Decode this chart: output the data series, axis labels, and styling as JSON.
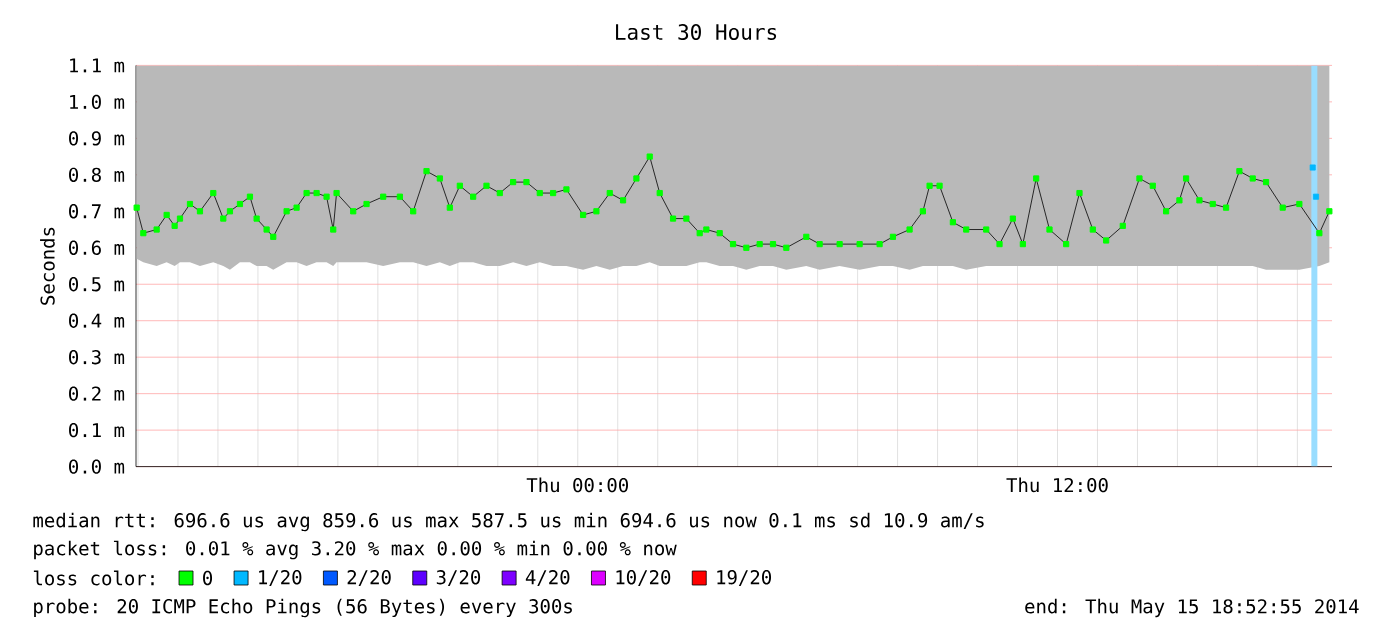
{
  "chart_data": {
    "type": "line",
    "title": "Last 30 Hours",
    "ylabel": "Seconds",
    "x": [
      "2014-05-14T12:58",
      "2014-05-14T13:08",
      "2014-05-14T13:28",
      "2014-05-14T13:43",
      "2014-05-14T13:55",
      "2014-05-14T14:03",
      "2014-05-14T14:18",
      "2014-05-14T14:33",
      "2014-05-14T14:53",
      "2014-05-14T15:08",
      "2014-05-14T15:18",
      "2014-05-14T15:33",
      "2014-05-14T15:48",
      "2014-05-14T15:58",
      "2014-05-14T16:13",
      "2014-05-14T16:23",
      "2014-05-14T16:43",
      "2014-05-14T16:58",
      "2014-05-14T17:13",
      "2014-05-14T17:28",
      "2014-05-14T17:43",
      "2014-05-14T17:53",
      "2014-05-14T17:58",
      "2014-05-14T18:23",
      "2014-05-14T18:43",
      "2014-05-14T19:08",
      "2014-05-14T19:33",
      "2014-05-14T19:53",
      "2014-05-14T20:13",
      "2014-05-14T20:33",
      "2014-05-14T20:48",
      "2014-05-14T21:03",
      "2014-05-14T21:23",
      "2014-05-14T21:43",
      "2014-05-14T22:03",
      "2014-05-14T22:23",
      "2014-05-14T22:43",
      "2014-05-14T23:03",
      "2014-05-14T23:23",
      "2014-05-14T23:43",
      "2014-05-15T00:08",
      "2014-05-15T00:28",
      "2014-05-15T00:48",
      "2014-05-15T01:08",
      "2014-05-15T01:28",
      "2014-05-15T01:48",
      "2014-05-15T02:03",
      "2014-05-15T02:23",
      "2014-05-15T02:43",
      "2014-05-15T03:03",
      "2014-05-15T03:13",
      "2014-05-15T03:33",
      "2014-05-15T03:53",
      "2014-05-15T04:13",
      "2014-05-15T04:33",
      "2014-05-15T04:53",
      "2014-05-15T05:13",
      "2014-05-15T05:43",
      "2014-05-15T06:03",
      "2014-05-15T06:33",
      "2014-05-15T07:03",
      "2014-05-15T07:33",
      "2014-05-15T07:53",
      "2014-05-15T08:18",
      "2014-05-15T08:38",
      "2014-05-15T08:48",
      "2014-05-15T09:03",
      "2014-05-15T09:23",
      "2014-05-15T09:43",
      "2014-05-15T10:13",
      "2014-05-15T10:33",
      "2014-05-15T10:53",
      "2014-05-15T11:08",
      "2014-05-15T11:28",
      "2014-05-15T11:48",
      "2014-05-15T12:13",
      "2014-05-15T12:33",
      "2014-05-15T12:53",
      "2014-05-15T13:13",
      "2014-05-15T13:38",
      "2014-05-15T14:03",
      "2014-05-15T14:23",
      "2014-05-15T14:43",
      "2014-05-15T15:03",
      "2014-05-15T15:13",
      "2014-05-15T15:33",
      "2014-05-15T15:53",
      "2014-05-15T16:13",
      "2014-05-15T16:33",
      "2014-05-15T16:53",
      "2014-05-15T17:13",
      "2014-05-15T17:38",
      "2014-05-15T18:03",
      "2014-05-15T18:33",
      "2014-05-15T18:48"
    ],
    "series": [
      {
        "name": "0",
        "color": "#00ff00",
        "values": [
          0.71,
          0.64,
          0.65,
          0.69,
          0.66,
          0.68,
          0.72,
          0.7,
          0.75,
          0.68,
          0.7,
          0.72,
          0.74,
          0.68,
          0.65,
          0.63,
          0.7,
          0.71,
          0.75,
          0.75,
          0.74,
          0.65,
          0.75,
          0.7,
          0.72,
          0.74,
          0.74,
          0.7,
          0.81,
          0.79,
          0.71,
          0.77,
          0.74,
          0.77,
          0.75,
          0.78,
          0.78,
          0.75,
          0.75,
          0.76,
          0.69,
          0.7,
          0.75,
          0.73,
          0.79,
          0.85,
          0.75,
          0.68,
          0.68,
          0.64,
          0.65,
          0.64,
          0.61,
          0.6,
          0.61,
          0.61,
          0.6,
          0.63,
          0.61,
          0.61,
          0.61,
          0.61,
          0.63,
          0.65,
          0.7,
          0.77,
          0.77,
          0.67,
          0.65,
          0.65,
          0.61,
          0.68,
          0.61,
          0.79,
          0.65,
          0.61,
          0.75,
          0.65,
          0.62,
          0.66,
          0.79,
          0.77,
          0.7,
          0.73,
          0.79,
          0.73,
          0.72,
          0.71,
          0.81,
          0.79,
          0.78,
          0.71,
          0.72,
          0.64,
          0.7
        ],
        "lower": [
          0.57,
          0.56,
          0.55,
          0.56,
          0.55,
          0.56,
          0.56,
          0.55,
          0.56,
          0.55,
          0.54,
          0.56,
          0.56,
          0.55,
          0.55,
          0.54,
          0.56,
          0.56,
          0.55,
          0.56,
          0.56,
          0.55,
          0.56,
          0.56,
          0.56,
          0.55,
          0.56,
          0.56,
          0.55,
          0.56,
          0.55,
          0.56,
          0.56,
          0.55,
          0.55,
          0.56,
          0.55,
          0.56,
          0.55,
          0.55,
          0.54,
          0.55,
          0.54,
          0.55,
          0.55,
          0.56,
          0.55,
          0.55,
          0.55,
          0.56,
          0.56,
          0.55,
          0.55,
          0.54,
          0.55,
          0.55,
          0.54,
          0.55,
          0.54,
          0.55,
          0.54,
          0.55,
          0.55,
          0.54,
          0.55,
          0.55,
          0.55,
          0.55,
          0.54,
          0.55,
          0.55,
          0.55,
          0.55,
          0.55,
          0.55,
          0.55,
          0.55,
          0.55,
          0.55,
          0.55,
          0.55,
          0.55,
          0.55,
          0.55,
          0.55,
          0.55,
          0.55,
          0.55,
          0.55,
          0.55,
          0.54,
          0.54,
          0.54,
          0.55,
          0.56
        ],
        "upper": [
          1.1,
          1.1,
          1.1,
          1.1,
          1.1,
          1.1,
          1.1,
          1.1,
          1.1,
          1.1,
          1.1,
          1.1,
          1.1,
          1.1,
          1.1,
          1.1,
          1.1,
          1.1,
          1.1,
          1.1,
          1.1,
          1.1,
          1.1,
          1.1,
          1.1,
          1.1,
          1.1,
          1.1,
          1.1,
          1.1,
          1.1,
          1.1,
          1.1,
          1.1,
          1.1,
          1.1,
          1.1,
          1.1,
          1.1,
          1.1,
          1.1,
          1.1,
          1.1,
          1.1,
          1.1,
          1.1,
          1.1,
          1.1,
          1.1,
          1.1,
          1.1,
          1.1,
          1.1,
          1.1,
          1.1,
          1.1,
          1.1,
          1.1,
          1.1,
          1.1,
          1.1,
          1.1,
          1.1,
          1.1,
          1.1,
          1.1,
          1.1,
          1.1,
          1.1,
          1.1,
          1.1,
          1.1,
          1.1,
          1.1,
          1.1,
          1.1,
          1.1,
          1.1,
          1.1,
          1.1,
          1.1,
          1.1,
          1.1,
          1.1,
          1.1,
          1.1,
          1.1,
          1.1,
          1.1,
          1.1,
          1.1,
          1.1,
          1.1,
          1.1,
          1.1
        ]
      },
      {
        "name": "1/20",
        "type": "scatter",
        "color": "#00b8ff",
        "x": [
          "2014-05-15T18:23",
          "2014-05-15T18:28"
        ],
        "values": [
          0.82,
          0.74
        ]
      },
      {
        "name": "2/20",
        "color": "#0059ff",
        "values": [
          null,
          null,
          null,
          null,
          null,
          null,
          null,
          null,
          null,
          null,
          null,
          null,
          null,
          null,
          null,
          null,
          null,
          null,
          null,
          null,
          null,
          null,
          null,
          null,
          null,
          null,
          null,
          null,
          null,
          null,
          null,
          null,
          null,
          null,
          null,
          null,
          null,
          null,
          null,
          null,
          null,
          null,
          null,
          null,
          null,
          null,
          null,
          null,
          null,
          null,
          null,
          null,
          null,
          null,
          null,
          null,
          null,
          null,
          null,
          null,
          null,
          null,
          null,
          null,
          null,
          null,
          null,
          null,
          null,
          null,
          null,
          null,
          null,
          null,
          null,
          null,
          null,
          null,
          null,
          null,
          null,
          null,
          null,
          null,
          null,
          null,
          null,
          null,
          null,
          null,
          null,
          null,
          null,
          null,
          null
        ]
      },
      {
        "name": "3/20",
        "color": "#5e00ff",
        "values": [
          null,
          null,
          null,
          null,
          null,
          null,
          null,
          null,
          null,
          null,
          null,
          null,
          null,
          null,
          null,
          null,
          null,
          null,
          null,
          null,
          null,
          null,
          null,
          null,
          null,
          null,
          null,
          null,
          null,
          null,
          null,
          null,
          null,
          null,
          null,
          null,
          null,
          null,
          null,
          null,
          null,
          null,
          null,
          null,
          null,
          null,
          null,
          null,
          null,
          null,
          null,
          null,
          null,
          null,
          null,
          null,
          null,
          null,
          null,
          null,
          null,
          null,
          null,
          null,
          null,
          null,
          null,
          null,
          null,
          null,
          null,
          null,
          null,
          null,
          null,
          null,
          null,
          null,
          null,
          null,
          null,
          null,
          null,
          null,
          null,
          null,
          null,
          null,
          null,
          null,
          null,
          null,
          null,
          null,
          null
        ]
      },
      {
        "name": "4/20",
        "color": "#7e00ff",
        "values": [
          null,
          null,
          null,
          null,
          null,
          null,
          null,
          null,
          null,
          null,
          null,
          null,
          null,
          null,
          null,
          null,
          null,
          null,
          null,
          null,
          null,
          null,
          null,
          null,
          null,
          null,
          null,
          null,
          null,
          null,
          null,
          null,
          null,
          null,
          null,
          null,
          null,
          null,
          null,
          null,
          null,
          null,
          null,
          null,
          null,
          null,
          null,
          null,
          null,
          null,
          null,
          null,
          null,
          null,
          null,
          null,
          null,
          null,
          null,
          null,
          null,
          null,
          null,
          null,
          null,
          null,
          null,
          null,
          null,
          null,
          null,
          null,
          null,
          null,
          null,
          null,
          null,
          null,
          null,
          null,
          null,
          null,
          null,
          null,
          null,
          null,
          null,
          null,
          null,
          null,
          null,
          null,
          null,
          null,
          null
        ]
      },
      {
        "name": "10/20",
        "color": "#dd00ff",
        "values": [
          null,
          null,
          null,
          null,
          null,
          null,
          null,
          null,
          null,
          null,
          null,
          null,
          null,
          null,
          null,
          null,
          null,
          null,
          null,
          null,
          null,
          null,
          null,
          null,
          null,
          null,
          null,
          null,
          null,
          null,
          null,
          null,
          null,
          null,
          null,
          null,
          null,
          null,
          null,
          null,
          null,
          null,
          null,
          null,
          null,
          null,
          null,
          null,
          null,
          null,
          null,
          null,
          null,
          null,
          null,
          null,
          null,
          null,
          null,
          null,
          null,
          null,
          null,
          null,
          null,
          null,
          null,
          null,
          null,
          null,
          null,
          null,
          null,
          null,
          null,
          null,
          null,
          null,
          null,
          null,
          null,
          null,
          null,
          null,
          null,
          null,
          null,
          null,
          null,
          null,
          null,
          null,
          null,
          null,
          null
        ]
      },
      {
        "name": "19/20",
        "color": "#ff0000",
        "values": [
          null,
          null,
          null,
          null,
          null,
          null,
          null,
          null,
          null,
          null,
          null,
          null,
          null,
          null,
          null,
          null,
          null,
          null,
          null,
          null,
          null,
          null,
          null,
          null,
          null,
          null,
          null,
          null,
          null,
          null,
          null,
          null,
          null,
          null,
          null,
          null,
          null,
          null,
          null,
          null,
          null,
          null,
          null,
          null,
          null,
          null,
          null,
          null,
          null,
          null,
          null,
          null,
          null,
          null,
          null,
          null,
          null,
          null,
          null,
          null,
          null,
          null,
          null,
          null,
          null,
          null,
          null,
          null,
          null,
          null,
          null,
          null,
          null,
          null,
          null,
          null,
          null,
          null,
          null,
          null,
          null,
          null,
          null,
          null,
          null,
          null,
          null,
          null,
          null,
          null,
          null,
          null,
          null,
          null,
          null
        ]
      }
    ],
    "xlim": [
      "2014-05-14T12:57",
      "2014-05-15T18:52"
    ],
    "ylim": [
      0,
      1.1
    ],
    "xticks": [
      {
        "value": "2014-05-14T13:00",
        "label": null
      },
      {
        "value": "2014-05-14T14:00",
        "label": null
      },
      {
        "value": "2014-05-14T15:00",
        "label": null
      },
      {
        "value": "2014-05-14T16:00",
        "label": null
      },
      {
        "value": "2014-05-14T17:00",
        "label": null
      },
      {
        "value": "2014-05-14T18:00",
        "label": null
      },
      {
        "value": "2014-05-14T19:00",
        "label": null
      },
      {
        "value": "2014-05-14T20:00",
        "label": null
      },
      {
        "value": "2014-05-14T21:00",
        "label": null
      },
      {
        "value": "2014-05-14T22:00",
        "label": null
      },
      {
        "value": "2014-05-14T23:00",
        "label": null
      },
      {
        "value": "2014-05-15T00:00",
        "label": "Thu 00:00"
      },
      {
        "value": "2014-05-15T01:00",
        "label": null
      },
      {
        "value": "2014-05-15T02:00",
        "label": null
      },
      {
        "value": "2014-05-15T03:00",
        "label": null
      },
      {
        "value": "2014-05-15T04:00",
        "label": null
      },
      {
        "value": "2014-05-15T05:00",
        "label": null
      },
      {
        "value": "2014-05-15T06:00",
        "label": null
      },
      {
        "value": "2014-05-15T07:00",
        "label": null
      },
      {
        "value": "2014-05-15T08:00",
        "label": null
      },
      {
        "value": "2014-05-15T09:00",
        "label": null
      },
      {
        "value": "2014-05-15T10:00",
        "label": null
      },
      {
        "value": "2014-05-15T11:00",
        "label": null
      },
      {
        "value": "2014-05-15T12:00",
        "label": "Thu 12:00"
      },
      {
        "value": "2014-05-15T13:00",
        "label": null
      },
      {
        "value": "2014-05-15T14:00",
        "label": null
      },
      {
        "value": "2014-05-15T15:00",
        "label": null
      },
      {
        "value": "2014-05-15T16:00",
        "label": null
      },
      {
        "value": "2014-05-15T17:00",
        "label": null
      },
      {
        "value": "2014-05-15T18:00",
        "label": null
      }
    ],
    "yticks": [
      {
        "value": 0,
        "label": "0.0 m"
      },
      {
        "value": 0.1,
        "label": "0.1 m"
      },
      {
        "value": 0.2,
        "label": "0.2 m"
      },
      {
        "value": 0.3,
        "label": "0.3 m"
      },
      {
        "value": 0.4,
        "label": "0.4 m"
      },
      {
        "value": 0.5,
        "label": "0.5 m"
      },
      {
        "value": 0.6,
        "label": "0.6 m"
      },
      {
        "value": 0.7,
        "label": "0.7 m"
      },
      {
        "value": 0.8,
        "label": "0.8 m"
      },
      {
        "value": 0.9,
        "label": "0.9 m"
      },
      {
        "value": 1.0,
        "label": "1.0 m"
      },
      {
        "value": 1.1,
        "label": "1.1 m"
      }
    ],
    "grid": true,
    "marker": "square",
    "legend": "bottom",
    "legend_title": "loss color:",
    "bands": [
      {
        "axis": "x",
        "from": "2014-05-15T18:21",
        "to": "2014-05-15T18:30",
        "color": "#99ddff"
      }
    ],
    "annotations": [
      "median rtt: 696.6 us avg 859.6 us max 587.5 us min 694.6 us now 0.1 ms sd 10.9 am/s",
      "packet loss: 0.01 % avg 3.20 % max 0.00 % min 0.00 % now",
      "probe: 20 ICMP Echo Pings (56 Bytes) every 300s",
      "end: Thu May 15 18:52:55 2014"
    ]
  }
}
